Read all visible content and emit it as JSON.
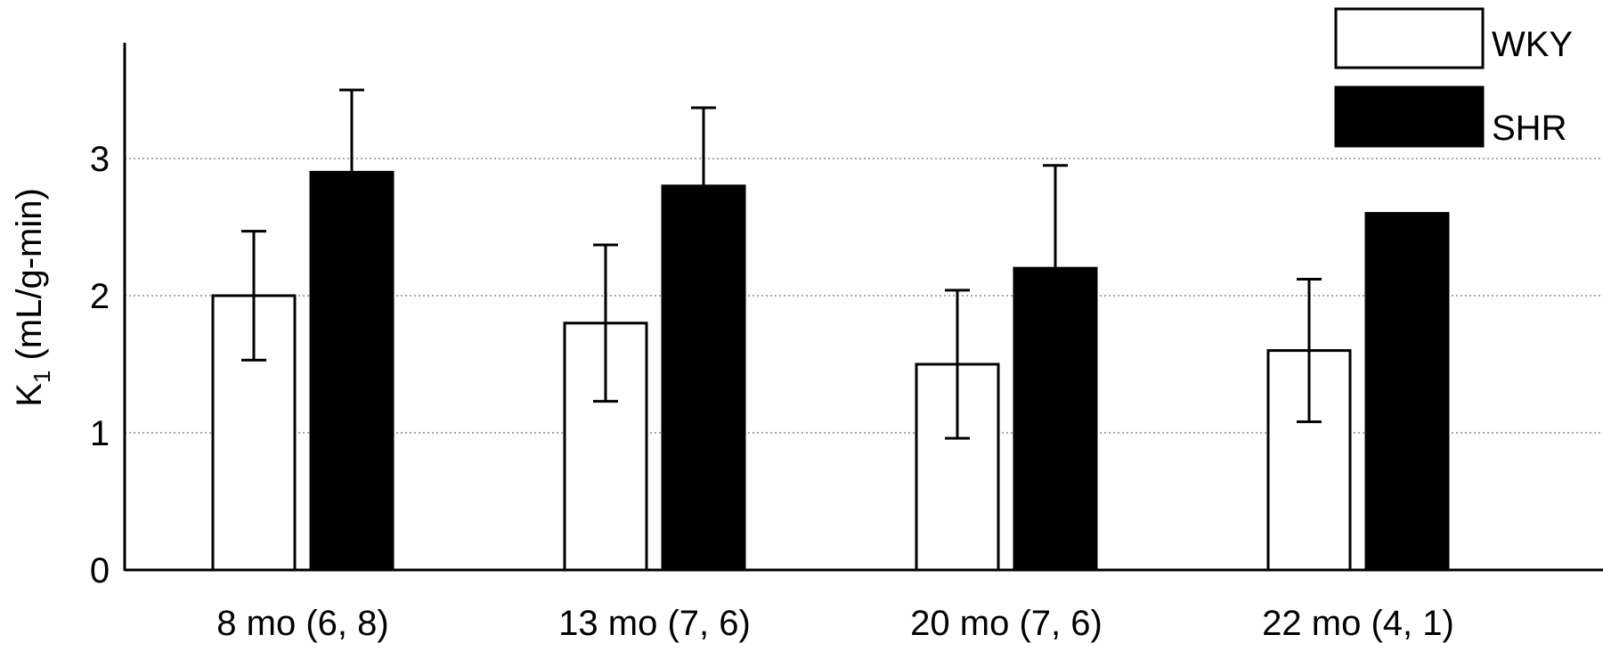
{
  "chart_data": {
    "type": "bar",
    "title": "",
    "xlabel": "",
    "ylabel_main": "K",
    "ylabel_sub": "1",
    "ylabel_rest": " (mL/g-min)",
    "categories": [
      "8 mo (6, 8)",
      "13 mo (7, 6)",
      "20 mo (7, 6)",
      "22 mo (4, 1)"
    ],
    "ylim": [
      0,
      3.8
    ],
    "yticks": [
      0,
      1,
      2,
      3
    ],
    "grid": "horizontal dotted at 1, 2, 3",
    "legend_position": "top-right",
    "series": [
      {
        "name": "WKY",
        "fill": "#ffffff",
        "values": [
          2.0,
          1.8,
          1.5,
          1.6
        ],
        "error": [
          0.47,
          0.57,
          0.54,
          0.52
        ]
      },
      {
        "name": "SHR",
        "fill": "#000000",
        "values": [
          2.9,
          2.8,
          2.2,
          2.6
        ],
        "error": [
          0.6,
          0.57,
          0.75,
          null
        ]
      }
    ]
  }
}
